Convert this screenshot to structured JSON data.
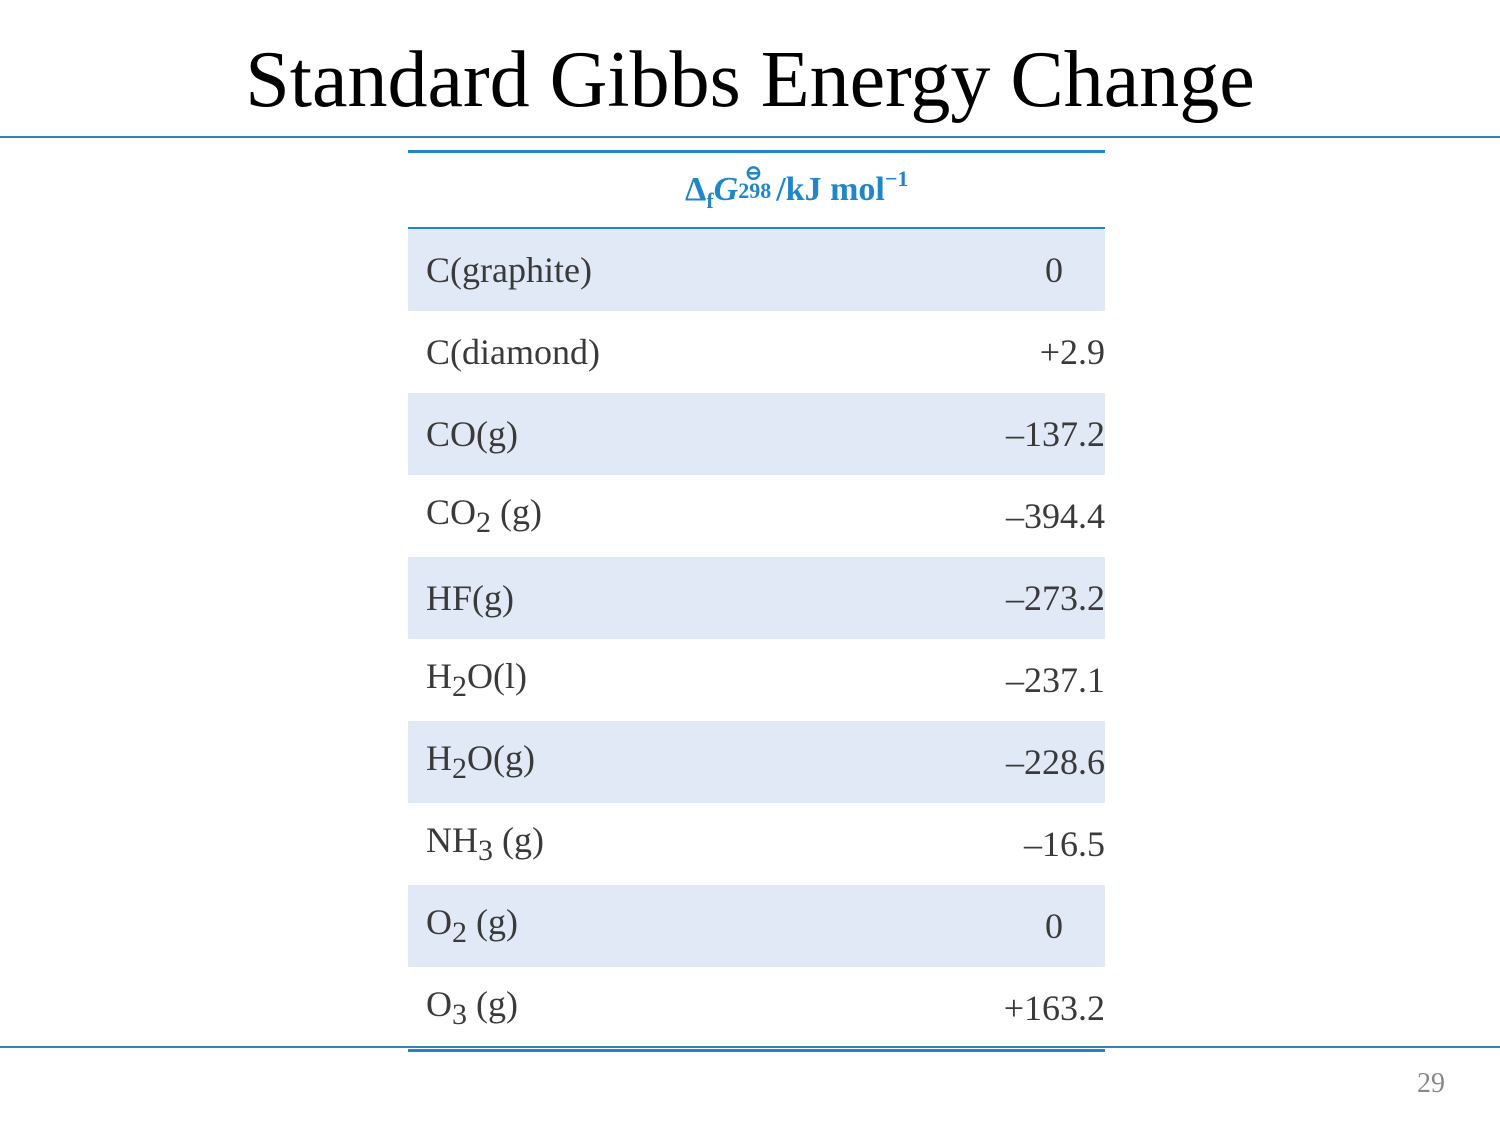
{
  "slide": {
    "title": "Standard Gibbs Energy Change",
    "page_number": "29"
  },
  "table": {
    "header": {
      "substance": "",
      "value_symbol": "Δ",
      "value_sub_f": "f",
      "value_G": "G",
      "value_plimsoll": "⊖",
      "value_temp": "298",
      "value_unit": "/kJ mol",
      "value_exp": "−1"
    },
    "rows": [
      {
        "substance": "C(graphite)",
        "value": "0"
      },
      {
        "substance": "C(diamond)",
        "value": "+2.9"
      },
      {
        "substance": "CO(g)",
        "value": "–137.2"
      },
      {
        "substance_base": "CO",
        "substance_sub": "2",
        "substance_rest": " (g)",
        "value": "–394.4"
      },
      {
        "substance": "HF(g)",
        "value": "–273.2"
      },
      {
        "substance_base": "H",
        "substance_sub": "2",
        "substance_rest": "O(l)",
        "value": "–237.1"
      },
      {
        "substance_base": "H",
        "substance_sub": "2",
        "substance_rest": "O(g)",
        "value": "–228.6"
      },
      {
        "substance_base": "NH",
        "substance_sub": "3",
        "substance_rest": " (g)",
        "value": "–16.5"
      },
      {
        "substance_base": "O",
        "substance_sub": "2",
        "substance_rest": " (g)",
        "value": "0"
      },
      {
        "substance_base": "O",
        "substance_sub": "3",
        "substance_rest": " (g)",
        "value": "+163.2"
      }
    ]
  }
}
